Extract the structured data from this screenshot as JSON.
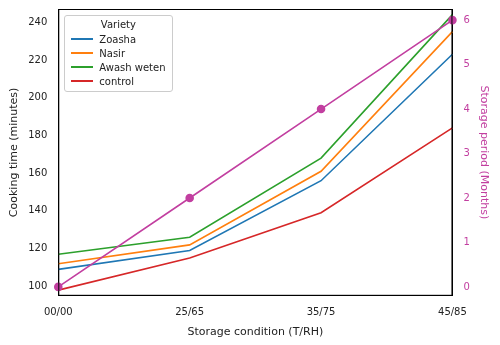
{
  "chart_data": {
    "type": "line",
    "categories": [
      "00/00",
      "25/65",
      "35/75",
      "45/85"
    ],
    "x_label": "Storage condition (T/RH)",
    "y_label": "Cooking time (minutes)",
    "y2_label": "Storage period (Months)",
    "legend_title": "Variety",
    "legend": "upper left",
    "grid": false,
    "ylim": [
      95,
      247
    ],
    "yticks": [
      100,
      120,
      140,
      160,
      180,
      200,
      220,
      240
    ],
    "y2lim": [
      -0.2,
      6.25
    ],
    "y2ticks": [
      0,
      1,
      2,
      3,
      4,
      5,
      6
    ],
    "series": [
      {
        "name": "Zoasha",
        "color": "#1f77b4",
        "values": [
          109,
          119,
          156,
          223
        ]
      },
      {
        "name": "Nasir",
        "color": "#ff7f0e",
        "values": [
          112,
          122,
          161,
          235
        ]
      },
      {
        "name": "Awash weten",
        "color": "#2ca02c",
        "values": [
          117,
          126,
          168,
          244
        ]
      },
      {
        "name": "control",
        "color": "#d62728",
        "values": [
          98,
          115,
          139,
          184
        ]
      },
      {
        "color": "#c23fa0",
        "values": [
          0,
          2,
          4,
          6
        ],
        "axis": "y2",
        "marker": "circle"
      }
    ]
  }
}
